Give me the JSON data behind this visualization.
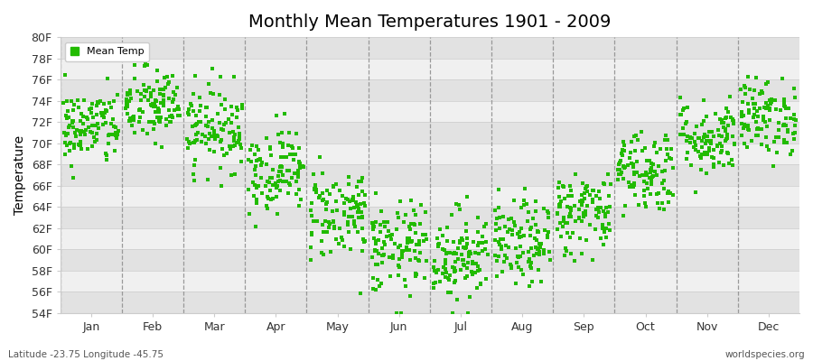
{
  "title": "Monthly Mean Temperatures 1901 - 2009",
  "ylabel": "Temperature",
  "ylim": [
    54,
    80
  ],
  "ytick_labels": [
    "54F",
    "56F",
    "58F",
    "60F",
    "62F",
    "64F",
    "66F",
    "68F",
    "70F",
    "72F",
    "74F",
    "76F",
    "78F",
    "80F"
  ],
  "ytick_values": [
    54,
    56,
    58,
    60,
    62,
    64,
    66,
    68,
    70,
    72,
    74,
    76,
    78,
    80
  ],
  "months": [
    "Jan",
    "Feb",
    "Mar",
    "Apr",
    "May",
    "Jun",
    "Jul",
    "Aug",
    "Sep",
    "Oct",
    "Nov",
    "Dec"
  ],
  "dot_color": "#22bb00",
  "legend_label": "Mean Temp",
  "bg_color": "#ffffff",
  "plot_bg_light": "#f0f0f0",
  "plot_bg_dark": "#e2e2e2",
  "bottom_left": "Latitude -23.75 Longitude -45.75",
  "bottom_right": "worldspecies.org",
  "n_years": 109,
  "monthly_means": [
    71.5,
    73.5,
    71.5,
    67.5,
    63.5,
    60.0,
    59.5,
    60.5,
    63.5,
    67.5,
    70.5,
    72.5
  ],
  "monthly_stds": [
    1.8,
    1.8,
    2.0,
    2.0,
    2.2,
    2.2,
    2.2,
    2.0,
    2.0,
    2.0,
    1.8,
    1.8
  ],
  "seed": 42
}
